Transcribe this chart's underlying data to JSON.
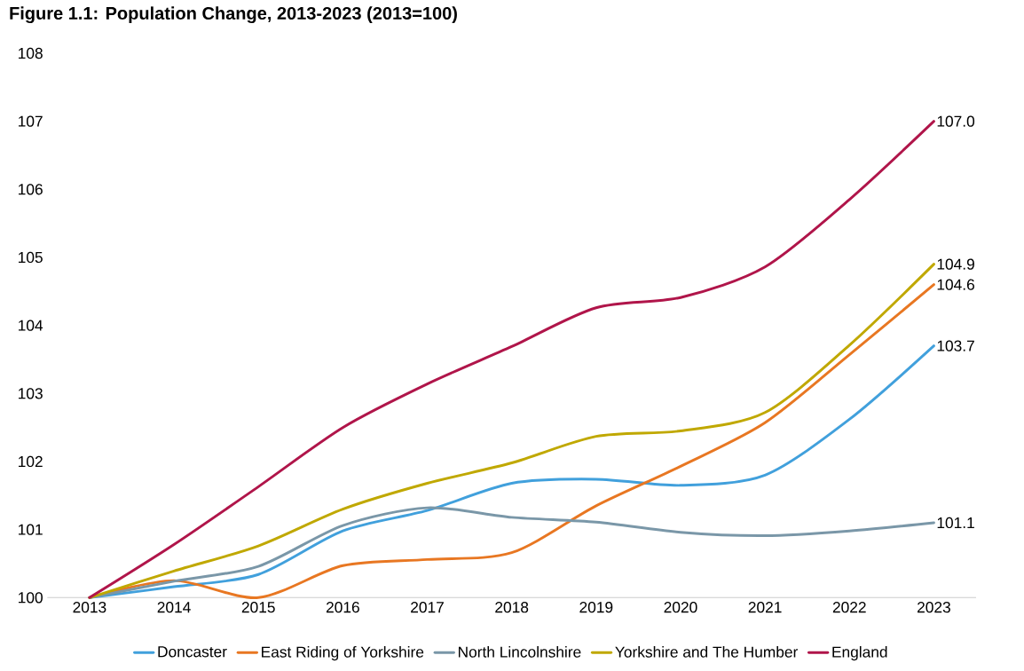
{
  "chart_data": {
    "type": "line",
    "title": "Figure 1.1: Population Change, 2013-2023 (2013=100)",
    "categories": [
      "2013",
      "2014",
      "2015",
      "2016",
      "2017",
      "2018",
      "2019",
      "2020",
      "2021",
      "2022",
      "2023"
    ],
    "ylim": [
      100,
      108
    ],
    "yticks": [
      100,
      101,
      102,
      103,
      104,
      105,
      106,
      107,
      108
    ],
    "legend": "bottom",
    "grid": false,
    "series": [
      {
        "name": "Doncaster",
        "color": "#41a0dc",
        "values": [
          100,
          100.16,
          100.34,
          100.98,
          101.28,
          101.68,
          101.74,
          101.65,
          101.8,
          102.62,
          103.7
        ],
        "value_labels": [
          null,
          null,
          null,
          null,
          null,
          null,
          null,
          null,
          null,
          null,
          "103.7"
        ]
      },
      {
        "name": "East Riding of Yorkshire",
        "color": "#e87722",
        "values": [
          100,
          100.25,
          100.0,
          100.47,
          100.56,
          100.66,
          101.35,
          101.93,
          102.57,
          103.57,
          104.6
        ],
        "value_labels": [
          null,
          null,
          null,
          null,
          null,
          null,
          null,
          null,
          null,
          null,
          "104.6"
        ]
      },
      {
        "name": "North Lincolnshire",
        "color": "#7a97a8",
        "values": [
          100,
          100.24,
          100.46,
          101.06,
          101.32,
          101.18,
          101.11,
          100.96,
          100.91,
          100.98,
          101.1
        ],
        "value_labels": [
          null,
          null,
          null,
          null,
          null,
          null,
          null,
          null,
          null,
          null,
          "101.1"
        ]
      },
      {
        "name": "Yorkshire and The Humber",
        "color": "#c0a800",
        "values": [
          100,
          100.39,
          100.76,
          101.3,
          101.68,
          101.98,
          102.37,
          102.45,
          102.72,
          103.71,
          104.9
        ],
        "value_labels": [
          null,
          null,
          null,
          null,
          null,
          null,
          null,
          null,
          null,
          null,
          "104.9"
        ]
      },
      {
        "name": "England",
        "color": "#b0154a",
        "values": [
          100,
          100.78,
          101.63,
          102.5,
          103.14,
          103.69,
          104.26,
          104.41,
          104.86,
          105.85,
          107.0
        ],
        "value_labels": [
          null,
          null,
          null,
          null,
          null,
          null,
          null,
          null,
          null,
          null,
          "107.0"
        ]
      }
    ]
  }
}
